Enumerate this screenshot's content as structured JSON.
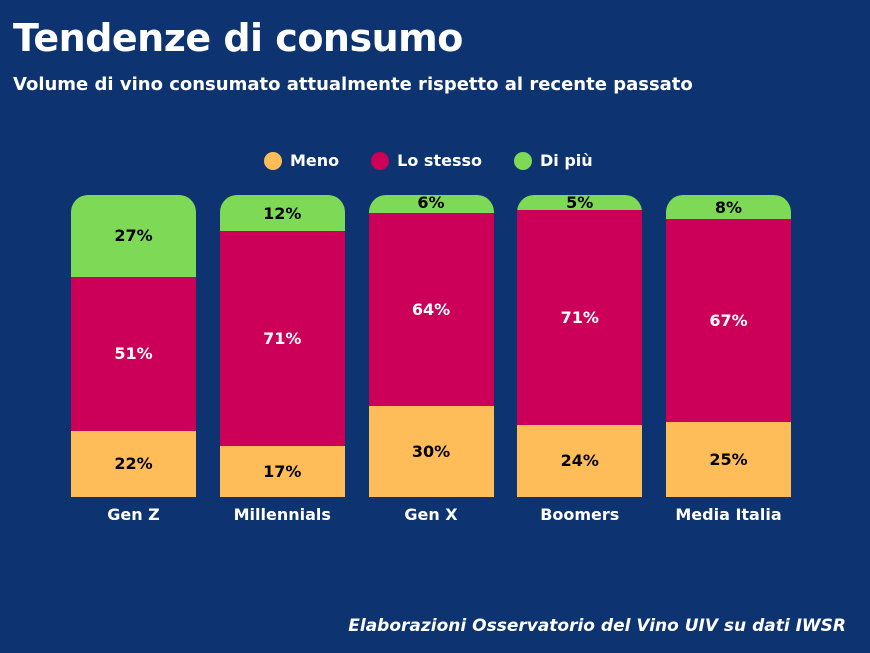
{
  "chart_data": {
    "type": "bar",
    "stacked": true,
    "title": "Tendenze di consumo",
    "subtitle": "Volume di vino consumato attualmente rispetto al recente passato",
    "categories": [
      "Gen Z",
      "Millennials",
      "Gen X",
      "Boomers",
      "Media Italia"
    ],
    "series": [
      {
        "name": "Meno",
        "color": "#ffbd59",
        "text_color": "#000000",
        "values": [
          22,
          17,
          30,
          24,
          25
        ]
      },
      {
        "name": "Lo stesso",
        "color": "#cc0058",
        "text_color": "#ffffff",
        "values": [
          51,
          71,
          64,
          71,
          67
        ]
      },
      {
        "name": "Di più",
        "color": "#7ed957",
        "text_color": "#000000",
        "values": [
          27,
          12,
          6,
          5,
          8
        ]
      }
    ],
    "value_suffix": "%",
    "ylim": [
      0,
      100
    ],
    "grid": false,
    "legend_position": "top",
    "source": "Elaborazioni Osservatorio del Vino UIV su dati IWSR"
  },
  "colors": {
    "background": "#0d3470"
  }
}
